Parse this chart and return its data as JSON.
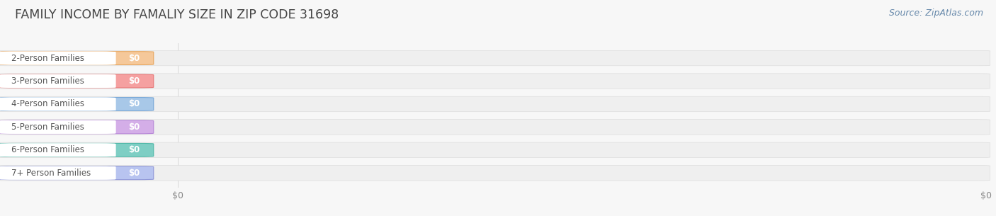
{
  "title": "FAMILY INCOME BY FAMALIY SIZE IN ZIP CODE 31698",
  "source": "Source: ZipAtlas.com",
  "categories": [
    "2-Person Families",
    "3-Person Families",
    "4-Person Families",
    "5-Person Families",
    "6-Person Families",
    "7+ Person Families"
  ],
  "values": [
    0,
    0,
    0,
    0,
    0,
    0
  ],
  "bar_colors": [
    "#f5c89a",
    "#f5a0a0",
    "#a8c8e8",
    "#d4aee8",
    "#7ecec4",
    "#b8c4f0"
  ],
  "bar_edge_colors": [
    "#e8a860",
    "#e87878",
    "#78a8d8",
    "#b888d8",
    "#50b8a8",
    "#9098d8"
  ],
  "pill_colors": [
    "#f5c89a",
    "#f5a0a0",
    "#a8c8e8",
    "#d4aee8",
    "#7ecec4",
    "#b8c4f0"
  ],
  "background_color": "#f7f7f7",
  "plot_bg_color": "#f7f7f7",
  "bar_bg_color": "#efefef",
  "title_fontsize": 12.5,
  "label_fontsize": 8.5,
  "value_fontsize": 8.5,
  "source_fontsize": 9,
  "bar_height": 0.65,
  "label_bar_width": 0.185,
  "grid_color": "#d8d8d8",
  "tick_label_color": "#888888"
}
